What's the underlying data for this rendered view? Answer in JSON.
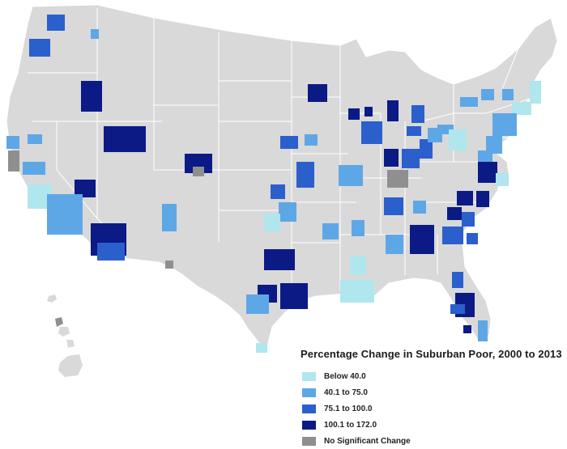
{
  "legend": {
    "title": "Percentage Change in Suburban Poor, 2000 to 2013",
    "items": [
      {
        "label": "Below 40.0",
        "color": "#b0e6ee"
      },
      {
        "label": "40.1 to 75.0",
        "color": "#5ea7e6"
      },
      {
        "label": "75.1 to 100.0",
        "color": "#2b5fcc"
      },
      {
        "label": "100.1 to 172.0",
        "color": "#0b1a85"
      },
      {
        "label": "No Significant Change",
        "color": "#8f8f8f"
      }
    ]
  },
  "colors": {
    "land": "#d9d9d9",
    "borders": "#ffffff",
    "background": "#ffffff"
  }
}
